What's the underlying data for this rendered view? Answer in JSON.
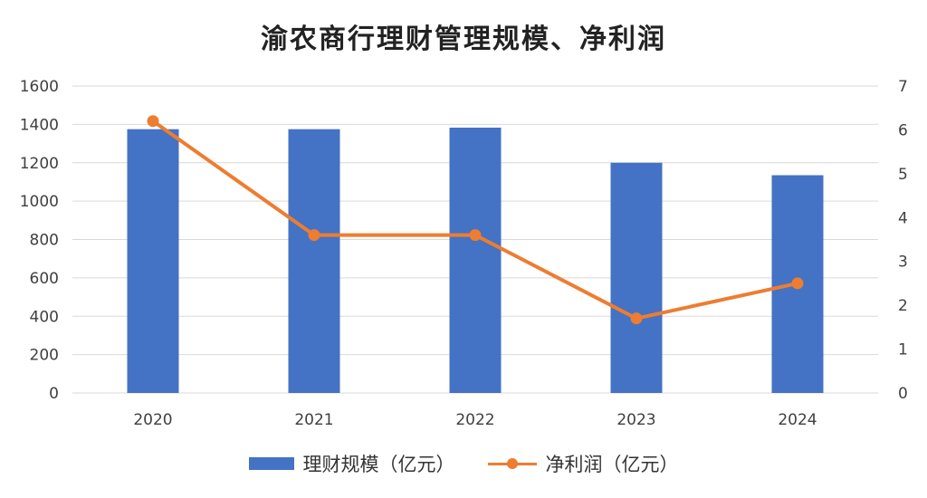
{
  "title": "渝农商行理财管理规模、净利润",
  "legend": {
    "bar_label": "理财规模（亿元）",
    "line_label": "净利润（亿元）"
  },
  "colors": {
    "bar": "#4472c4",
    "line": "#ed7d31",
    "grid": "#d9d9d9",
    "axis_text": "#404040"
  },
  "chart_data": {
    "type": "bar",
    "title": "渝农商行理财管理规模、净利润",
    "categories": [
      "2020",
      "2021",
      "2022",
      "2023",
      "2024"
    ],
    "series": [
      {
        "name": "理财规模（亿元）",
        "type": "bar",
        "axis": "left",
        "values": [
          1375,
          1375,
          1383,
          1200,
          1135
        ]
      },
      {
        "name": "净利润（亿元）",
        "type": "line",
        "axis": "right",
        "values": [
          6.2,
          3.6,
          3.6,
          1.7,
          2.5
        ]
      }
    ],
    "ylim_left": [
      0,
      1600
    ],
    "yticks_left": [
      "0",
      "200",
      "400",
      "600",
      "800",
      "1000",
      "1200",
      "1400",
      "1600"
    ],
    "ylim_right": [
      0,
      7
    ],
    "yticks_right": [
      "0",
      "1",
      "2",
      "3",
      "4",
      "5",
      "6",
      "7"
    ],
    "grid": true,
    "legend_position": "bottom"
  }
}
